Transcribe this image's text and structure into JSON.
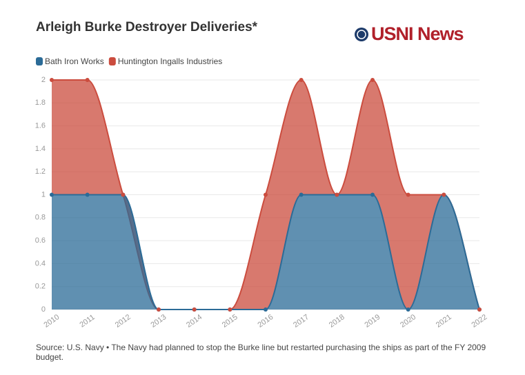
{
  "chart_data": {
    "type": "stacked-area",
    "title": "Arleigh Burke Destroyer Deliveries*",
    "logo": "USNI News",
    "source": "Source: U.S. Navy • The Navy had planned to stop the Burke line but restarted purchasing the ships as part of the FY 2009 budget.",
    "categories": [
      "2010",
      "2011",
      "2012",
      "2013",
      "2014",
      "2015",
      "2016",
      "2017",
      "2018",
      "2019",
      "2020",
      "2021",
      "2022"
    ],
    "series": [
      {
        "name": "Bath Iron Works",
        "color": "#2b6b97",
        "values": [
          1,
          1,
          1,
          0,
          0,
          0,
          0,
          1,
          1,
          1,
          0,
          1,
          0
        ]
      },
      {
        "name": "Huntington Ingalls Industries",
        "color": "#cb4c3e",
        "values": [
          1,
          1,
          0,
          0,
          0,
          0,
          1,
          1,
          0,
          1,
          1,
          0,
          0
        ]
      }
    ],
    "ylim": [
      0,
      2
    ],
    "yticks": [
      0,
      0.2,
      0.4,
      0.6,
      0.8,
      1,
      1.2,
      1.4,
      1.6,
      1.8,
      2
    ],
    "grid": true
  }
}
